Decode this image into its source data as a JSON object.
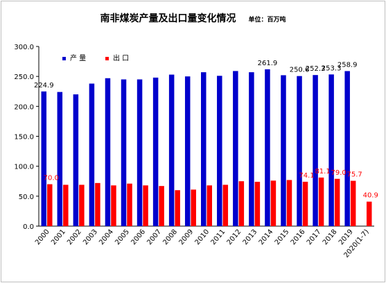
{
  "chart_data": {
    "type": "bar",
    "title": "南非煤炭产量及出口量变化情况",
    "unit_label": "单位：百万吨",
    "categories": [
      "2000",
      "2001",
      "2002",
      "2003",
      "2004",
      "2005",
      "2006",
      "2007",
      "2008",
      "2009",
      "2010",
      "2011",
      "2012",
      "2013",
      "2014",
      "2015",
      "2016",
      "2017",
      "2018",
      "2019",
      "2020(1-7)"
    ],
    "ylim": [
      0,
      300
    ],
    "yticks": [
      "0.0",
      "50.0",
      "100.0",
      "150.0",
      "200.0",
      "250.0",
      "300.0"
    ],
    "grid": false,
    "legend_position": "top-left",
    "series": [
      {
        "name": "产 量",
        "color": "#0000cc",
        "values": [
          224.9,
          224,
          220,
          238,
          247,
          245,
          245,
          248,
          253,
          250,
          257,
          251,
          259,
          257,
          261.9,
          252,
          250.6,
          252.3,
          253.3,
          258.9,
          null
        ],
        "labels": [
          "224.9",
          null,
          null,
          null,
          null,
          null,
          null,
          null,
          null,
          null,
          null,
          null,
          null,
          null,
          "261.9",
          null,
          "250.6",
          "252.3",
          "253.3",
          "258.9",
          null
        ]
      },
      {
        "name": "出 口",
        "color": "#ff0000",
        "values": [
          70.0,
          69,
          69,
          72,
          68,
          71,
          68,
          67,
          60,
          61,
          68,
          69,
          75,
          74,
          76,
          77,
          74.1,
          81.1,
          79.0,
          75.7,
          40.9
        ],
        "labels": [
          "70.0",
          null,
          null,
          null,
          null,
          null,
          null,
          null,
          null,
          null,
          null,
          null,
          null,
          null,
          null,
          null,
          "74.1",
          "81.1",
          "79.0",
          "75.7",
          "40.9"
        ]
      }
    ]
  }
}
